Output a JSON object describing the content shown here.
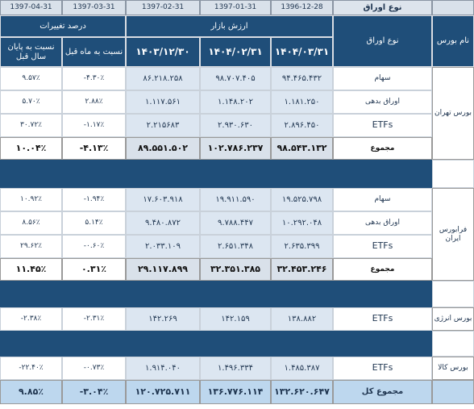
{
  "header": {
    "dates": [
      "1397-04-31",
      "1397-03-31",
      "1397-02-31",
      "1397-01-31",
      "1396-12-28"
    ],
    "security_type": "نوع اوراق",
    "change_group": "درصد تغییرات",
    "value_group": "ارزش بازار",
    "col_change_year": "نسبت به پایان سال قبل",
    "col_change_month": "نسبت به ماه قبل",
    "col_date_1": "۱۴۰۳/۱۲/۳۰",
    "col_date_2": "۱۴۰۴/۰۲/۳۱",
    "col_date_3": "۱۴۰۴/۰۳/۳۱",
    "col_security_type": "نوع اوراق",
    "col_exchange": "نام بورس"
  },
  "tehran": {
    "exchange": "بورس تهران",
    "rows": [
      {
        "type": "سهام",
        "v3": "۹۴.۴۶۵.۴۳۲",
        "v2": "۹۸.۷۰۷.۴۰۵",
        "v1": "۸۶.۲۱۸.۲۵۸",
        "month": "-۴.۳۰٪",
        "year": "۹.۵۷٪"
      },
      {
        "type": "اوراق بدهی",
        "v3": "۱.۱۸۱.۲۵۰",
        "v2": "۱.۱۴۸.۲۰۲",
        "v1": "۱.۱۱۷.۵۶۱",
        "month": "۲.۸۸٪",
        "year": "۵.۷۰٪"
      },
      {
        "type": "ETFs",
        "v3": "۲.۸۹۶.۴۵۰",
        "v2": "۲.۹۳۰.۶۳۰",
        "v1": "۲.۲۱۵۶۸۳",
        "month": "-۱.۱۷٪",
        "year": "۳۰.۷۲٪"
      }
    ],
    "total": {
      "type": "مجموع",
      "v3": "۹۸.۵۴۳.۱۳۲",
      "v2": "۱۰۲.۷۸۶.۲۳۷",
      "v1": "۸۹.۵۵۱.۵۰۲",
      "month": "-۴.۱۳٪",
      "year": "۱۰.۰۴٪"
    }
  },
  "farabourse": {
    "exchange": "فرابورس ایران",
    "rows": [
      {
        "type": "سهام",
        "v3": "۱۹.۵۲۵.۷۹۸",
        "v2": "۱۹.۹۱۱.۵۹۰",
        "v1": "۱۷.۶۰۳.۹۱۸",
        "month": "-۱.۹۴٪",
        "year": "۱۰.۹۲٪"
      },
      {
        "type": "اوراق بدهی",
        "v3": "۱۰.۲۹۲.۰۴۸",
        "v2": "۹.۷۸۸.۴۴۷",
        "v1": "۹.۴۸۰.۸۷۲",
        "month": "۵.۱۴٪",
        "year": "۸.۵۶٪"
      },
      {
        "type": "ETFs",
        "v3": "۲.۶۳۵.۳۹۹",
        "v2": "۲.۶۵۱.۳۴۸",
        "v1": "۲.۰۳۳.۱۰۹",
        "month": "-۰.۶۰٪",
        "year": "۲۹.۶۲٪"
      }
    ],
    "total": {
      "type": "مجموع",
      "v3": "۳۲.۴۵۳.۲۴۶",
      "v2": "۳۲.۳۵۱.۳۸۵",
      "v1": "۲۹.۱۱۷.۸۹۹",
      "month": "۰.۳۱٪",
      "year": "۱۱.۴۵٪"
    }
  },
  "energy": {
    "exchange": "بورس انرژی",
    "row": {
      "type": "ETFs",
      "v3": "۱۳۸.۸۸۲",
      "v2": "۱۴۲.۱۵۹",
      "v1": "۱۴۲.۲۶۹",
      "month": "-۲.۳۱٪",
      "year": "-۲.۳۸٪"
    }
  },
  "commodity": {
    "exchange": "بورس کالا",
    "row": {
      "type": "ETFs",
      "v3": "۱.۴۸۵.۳۸۷",
      "v2": "۱.۴۹۶.۳۳۴",
      "v1": "۱.۹۱۴.۰۴۰",
      "month": "-۰.۷۳٪",
      "year": "-۲۲.۴۰٪"
    }
  },
  "grand_total": {
    "label": "مجموع کل",
    "v3": "۱۳۲.۶۲۰.۶۴۷",
    "v2": "۱۳۶.۷۷۶.۱۱۴",
    "v1": "۱۲۰.۷۲۵.۷۱۱",
    "month": "-۳.۰۴٪",
    "year": "۹.۸۵٪"
  },
  "colors": {
    "header_bg": "#1f4e79",
    "light_blue": "#dce6f1",
    "grand_total_bg": "#bdd7ee"
  }
}
